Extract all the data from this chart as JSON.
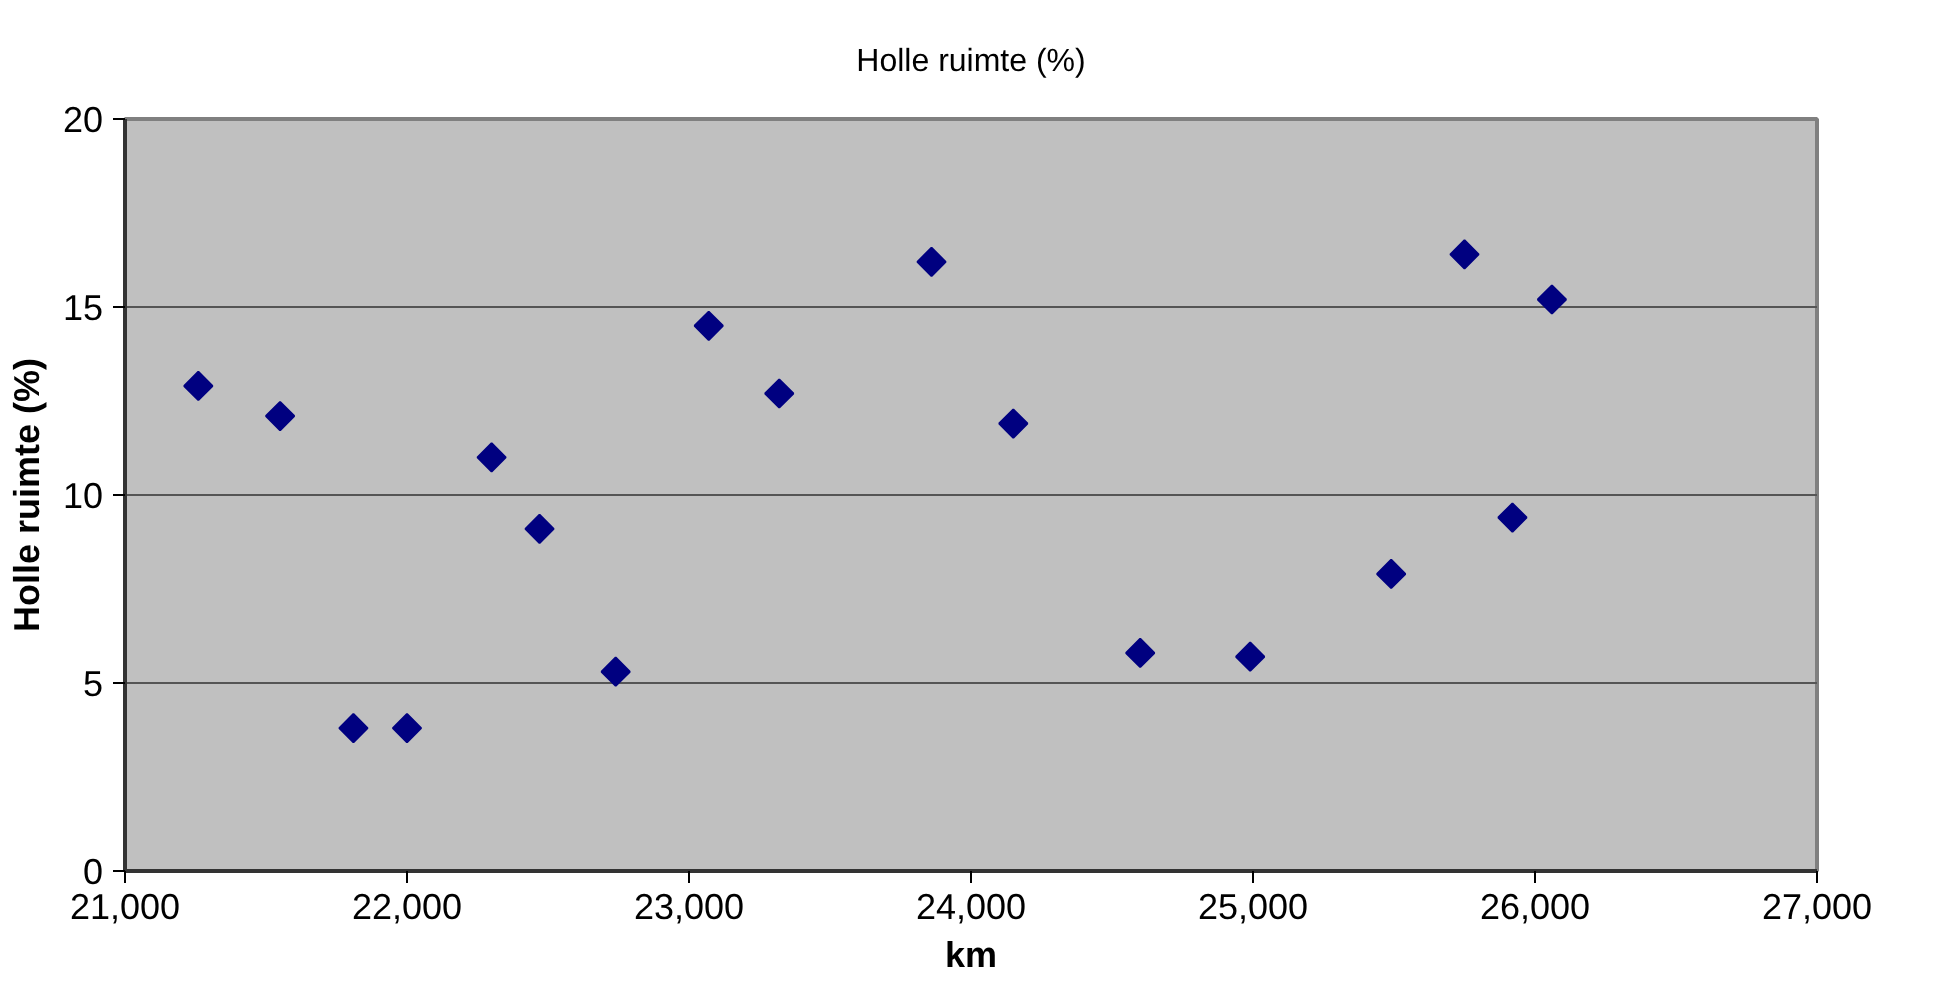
{
  "chart_data": {
    "type": "scatter",
    "title": "Holle ruimte (%)",
    "xlabel": "km",
    "ylabel": "Holle ruimte (%)",
    "x": [
      21260,
      21550,
      21810,
      22000,
      22300,
      22470,
      22740,
      23070,
      23320,
      23860,
      24150,
      24600,
      24990,
      25490,
      25750,
      25920,
      26060
    ],
    "series": [
      {
        "color": "#000080",
        "values": [
          12.9,
          12.1,
          3.8,
          3.8,
          11.0,
          9.1,
          5.3,
          14.5,
          12.7,
          16.2,
          11.9,
          5.8,
          5.7,
          7.9,
          16.4,
          9.4,
          15.2
        ]
      }
    ],
    "xlim": [
      21000,
      27000
    ],
    "xticks": [
      {
        "value": 21000,
        "label": "21,000"
      },
      {
        "value": 22000,
        "label": "22,000"
      },
      {
        "value": 23000,
        "label": "23,000"
      },
      {
        "value": 24000,
        "label": "24,000"
      },
      {
        "value": 25000,
        "label": "25,000"
      },
      {
        "value": 26000,
        "label": "26,000"
      },
      {
        "value": 27000,
        "label": "27,000"
      }
    ],
    "ylim": [
      0,
      20
    ],
    "yticks": [
      0,
      5,
      10,
      15,
      20
    ],
    "grid": "y",
    "marker": "diamond"
  }
}
